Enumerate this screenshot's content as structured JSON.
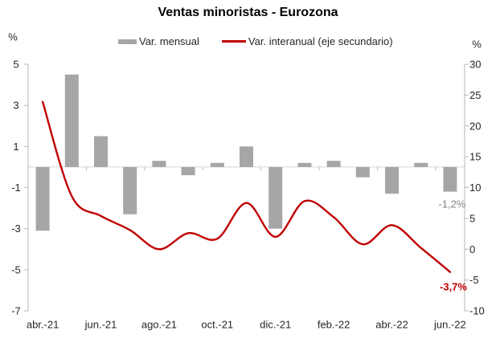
{
  "title": "Ventas minoristas - Eurozona",
  "legend": [
    {
      "label": "Var. mensual",
      "type": "bar",
      "color": "#a6a6a6"
    },
    {
      "label": "Var. interanual (eje secundario)",
      "type": "line",
      "color": "#c00000"
    }
  ],
  "chart_data": {
    "type": "bar",
    "subtype": "combo-bar-line-two-axes",
    "title": "Ventas minoristas - Eurozona",
    "categories": [
      "abr.-21",
      "may.-21",
      "jun.-21",
      "jul.-21",
      "ago.-21",
      "sep.-21",
      "oct.-21",
      "nov.-21",
      "dic.-21",
      "ene.-22",
      "feb.-22",
      "mar.-22",
      "abr.-22",
      "may.-22",
      "jun.-22"
    ],
    "x_tick_labels": [
      "abr.-21",
      "jun.-21",
      "ago.-21",
      "oct.-21",
      "dic.-21",
      "feb.-22",
      "abr.-22",
      "jun.-22"
    ],
    "series": [
      {
        "name": "Var. mensual",
        "type": "bar",
        "axis": "left",
        "color": "#a6a6a6",
        "values": [
          -3.1,
          4.5,
          1.5,
          -2.3,
          0.3,
          -0.4,
          0.2,
          1.0,
          -3.0,
          0.2,
          0.3,
          -0.5,
          -1.3,
          0.2,
          -1.2
        ]
      },
      {
        "name": "Var. interanual (eje secundario)",
        "type": "line",
        "axis": "right",
        "color": "#c00000",
        "values": [
          23.9,
          8.6,
          5.4,
          3.1,
          0.0,
          2.6,
          1.7,
          7.5,
          2.0,
          7.8,
          5.2,
          0.8,
          3.9,
          0.2,
          -3.7
        ]
      }
    ],
    "left_axis": {
      "unit": "%",
      "max": 5,
      "min": -7,
      "ticks": [
        5,
        3,
        1,
        -1,
        -3,
        -5,
        -7
      ]
    },
    "right_axis": {
      "unit": "%",
      "max": 30,
      "min": -10,
      "ticks": [
        30,
        25,
        20,
        15,
        10,
        5,
        0,
        -5,
        -10
      ]
    },
    "grid": false,
    "legend_position": "top",
    "annotations": [
      {
        "text": "-1,2%",
        "series": "Var. mensual",
        "category": "jun.-22",
        "color": "#848484",
        "bold": false
      },
      {
        "text": "-3,7%",
        "series": "Var. interanual (eje secundario)",
        "category": "jun.-22",
        "color": "#c00000",
        "bold": true
      }
    ]
  },
  "colors": {
    "bar": "#a6a6a6",
    "line": "#c00000",
    "axis": "#b7b7b7",
    "zero_line": "#d6d6d6",
    "tick_text": "#262626"
  }
}
